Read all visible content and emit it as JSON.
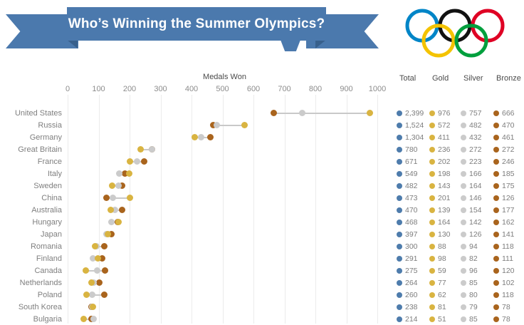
{
  "banner": {
    "title": "Who’s Winning the Summer Olympics?"
  },
  "colors": {
    "banner": "#4b79ad",
    "banner_dark": "#38608c",
    "total": "#4e7cac",
    "gold": "#d9b441",
    "silver": "#cbcbcb",
    "bronze": "#a9641d",
    "gridline": "#ebebeb"
  },
  "table": {
    "headers": [
      "Total",
      "Gold",
      "Silver",
      "Bronze"
    ]
  },
  "chart_data": {
    "type": "scatter",
    "title": "Medals Won",
    "xlabel": "Medals Won",
    "x_ticks": [
      0,
      100,
      200,
      300,
      400,
      500,
      600,
      700,
      800,
      900,
      1000
    ],
    "xlim": [
      0,
      1023
    ],
    "grid": true,
    "series_names": [
      "Gold",
      "Silver",
      "Bronze"
    ],
    "rows": [
      {
        "country": "United States",
        "total": "2,399",
        "gold": 976,
        "silver": 757,
        "bronze": 666
      },
      {
        "country": "Russia",
        "total": "1,524",
        "gold": 572,
        "silver": 482,
        "bronze": 470
      },
      {
        "country": "Germany",
        "total": "1,304",
        "gold": 411,
        "silver": 432,
        "bronze": 461
      },
      {
        "country": "Great Britain",
        "total": "780",
        "gold": 236,
        "silver": 272,
        "bronze": 272
      },
      {
        "country": "France",
        "total": "671",
        "gold": 202,
        "silver": 223,
        "bronze": 246
      },
      {
        "country": "Italy",
        "total": "549",
        "gold": 198,
        "silver": 166,
        "bronze": 185
      },
      {
        "country": "Sweden",
        "total": "482",
        "gold": 143,
        "silver": 164,
        "bronze": 175
      },
      {
        "country": "China",
        "total": "473",
        "gold": 201,
        "silver": 146,
        "bronze": 126
      },
      {
        "country": "Australia",
        "total": "470",
        "gold": 139,
        "silver": 154,
        "bronze": 177
      },
      {
        "country": "Hungary",
        "total": "468",
        "gold": 164,
        "silver": 142,
        "bronze": 162
      },
      {
        "country": "Japan",
        "total": "397",
        "gold": 130,
        "silver": 126,
        "bronze": 141
      },
      {
        "country": "Romania",
        "total": "300",
        "gold": 88,
        "silver": 94,
        "bronze": 118
      },
      {
        "country": "Finland",
        "total": "291",
        "gold": 98,
        "silver": 82,
        "bronze": 111
      },
      {
        "country": "Canada",
        "total": "275",
        "gold": 59,
        "silver": 96,
        "bronze": 120
      },
      {
        "country": "Netherlands",
        "total": "264",
        "gold": 77,
        "silver": 85,
        "bronze": 102
      },
      {
        "country": "Poland",
        "total": "260",
        "gold": 62,
        "silver": 80,
        "bronze": 118
      },
      {
        "country": "South Korea",
        "total": "238",
        "gold": 81,
        "silver": 79,
        "bronze": 78
      },
      {
        "country": "Bulgaria",
        "total": "214",
        "gold": 51,
        "silver": 85,
        "bronze": 78
      }
    ]
  }
}
